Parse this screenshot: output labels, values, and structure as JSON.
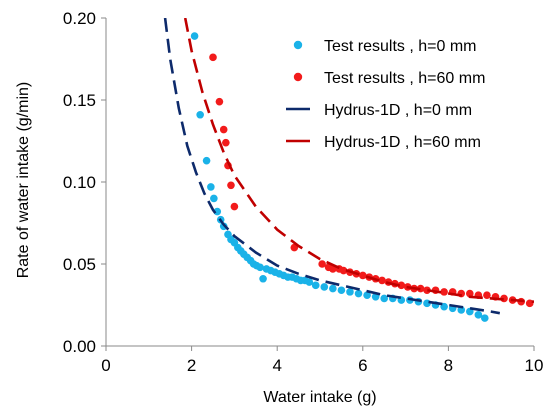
{
  "chart_data": {
    "type": "scatter",
    "title": "",
    "xlabel": "Water intake  (g)",
    "ylabel": "Rate of water intake (g/min)",
    "xlim": [
      0,
      10
    ],
    "ylim": [
      0,
      0.2
    ],
    "x_ticks": [
      "0",
      "2",
      "4",
      "6",
      "8",
      "10"
    ],
    "y_ticks": [
      "0.00",
      "0.05",
      "0.10",
      "0.15",
      "0.20"
    ],
    "grid": false,
    "legend_position": "top-right",
    "series": [
      {
        "name": "Test results , h=0 mm",
        "kind": "points",
        "color": "#1ab2e8",
        "points": [
          [
            2.07,
            0.189
          ],
          [
            2.2,
            0.141
          ],
          [
            2.35,
            0.113
          ],
          [
            2.45,
            0.097
          ],
          [
            2.52,
            0.09
          ],
          [
            2.6,
            0.082
          ],
          [
            2.68,
            0.077
          ],
          [
            2.75,
            0.073
          ],
          [
            2.85,
            0.068
          ],
          [
            2.92,
            0.065
          ],
          [
            3.0,
            0.063
          ],
          [
            3.08,
            0.06
          ],
          [
            3.15,
            0.058
          ],
          [
            3.22,
            0.056
          ],
          [
            3.3,
            0.054
          ],
          [
            3.38,
            0.052
          ],
          [
            3.45,
            0.05
          ],
          [
            3.52,
            0.049
          ],
          [
            3.6,
            0.048
          ],
          [
            3.67,
            0.041
          ],
          [
            3.75,
            0.047
          ],
          [
            3.85,
            0.046
          ],
          [
            3.95,
            0.045
          ],
          [
            4.05,
            0.044
          ],
          [
            4.15,
            0.043
          ],
          [
            4.25,
            0.042
          ],
          [
            4.35,
            0.042
          ],
          [
            4.45,
            0.041
          ],
          [
            4.55,
            0.04
          ],
          [
            4.65,
            0.04
          ],
          [
            4.75,
            0.039
          ],
          [
            4.9,
            0.037
          ],
          [
            5.1,
            0.036
          ],
          [
            5.3,
            0.035
          ],
          [
            5.5,
            0.034
          ],
          [
            5.7,
            0.033
          ],
          [
            5.9,
            0.032
          ],
          [
            6.1,
            0.031
          ],
          [
            6.3,
            0.03
          ],
          [
            6.5,
            0.029
          ],
          [
            6.7,
            0.029
          ],
          [
            6.9,
            0.028
          ],
          [
            7.1,
            0.028
          ],
          [
            7.3,
            0.027
          ],
          [
            7.5,
            0.026
          ],
          [
            7.7,
            0.025
          ],
          [
            7.9,
            0.024
          ],
          [
            8.1,
            0.023
          ],
          [
            8.3,
            0.022
          ],
          [
            8.5,
            0.021
          ],
          [
            8.7,
            0.019
          ],
          [
            8.85,
            0.017
          ]
        ]
      },
      {
        "name": "Test results , h=60 mm",
        "kind": "points",
        "color": "#f21b1b",
        "points": [
          [
            2.5,
            0.176
          ],
          [
            2.65,
            0.149
          ],
          [
            2.75,
            0.132
          ],
          [
            2.8,
            0.124
          ],
          [
            2.85,
            0.11
          ],
          [
            2.92,
            0.098
          ],
          [
            3.0,
            0.085
          ],
          [
            4.4,
            0.06
          ],
          [
            5.05,
            0.05
          ],
          [
            5.2,
            0.048
          ],
          [
            5.3,
            0.047
          ],
          [
            5.45,
            0.047
          ],
          [
            5.55,
            0.046
          ],
          [
            5.7,
            0.045
          ],
          [
            5.85,
            0.044
          ],
          [
            6.0,
            0.043
          ],
          [
            6.15,
            0.042
          ],
          [
            6.3,
            0.041
          ],
          [
            6.45,
            0.04
          ],
          [
            6.6,
            0.039
          ],
          [
            6.75,
            0.038
          ],
          [
            6.9,
            0.037
          ],
          [
            7.05,
            0.036
          ],
          [
            7.2,
            0.035
          ],
          [
            7.35,
            0.035
          ],
          [
            7.5,
            0.034
          ],
          [
            7.7,
            0.034
          ],
          [
            7.9,
            0.033
          ],
          [
            8.1,
            0.033
          ],
          [
            8.3,
            0.032
          ],
          [
            8.5,
            0.032
          ],
          [
            8.7,
            0.031
          ],
          [
            8.9,
            0.031
          ],
          [
            9.1,
            0.03
          ],
          [
            9.3,
            0.029
          ],
          [
            9.5,
            0.028
          ],
          [
            9.7,
            0.027
          ],
          [
            9.9,
            0.026
          ]
        ]
      },
      {
        "name": "Hydrus-1D , h=0 mm",
        "kind": "dashed-line",
        "color": "#0d2a6b",
        "points": [
          [
            1.38,
            0.2
          ],
          [
            1.5,
            0.175
          ],
          [
            1.7,
            0.145
          ],
          [
            1.9,
            0.122
          ],
          [
            2.1,
            0.106
          ],
          [
            2.3,
            0.093
          ],
          [
            2.5,
            0.083
          ],
          [
            2.75,
            0.074
          ],
          [
            3.0,
            0.067
          ],
          [
            3.5,
            0.057
          ],
          [
            4.0,
            0.049
          ],
          [
            4.5,
            0.044
          ],
          [
            5.0,
            0.04
          ],
          [
            5.5,
            0.037
          ],
          [
            6.0,
            0.034
          ],
          [
            6.5,
            0.031
          ],
          [
            7.0,
            0.029
          ],
          [
            7.5,
            0.027
          ],
          [
            8.0,
            0.025
          ],
          [
            8.5,
            0.023
          ],
          [
            9.0,
            0.021
          ],
          [
            9.2,
            0.02
          ]
        ]
      },
      {
        "name": "Hydrus-1D , h=60 mm",
        "kind": "dashed-line",
        "color": "#c00000",
        "points": [
          [
            1.85,
            0.2
          ],
          [
            2.0,
            0.18
          ],
          [
            2.25,
            0.155
          ],
          [
            2.5,
            0.135
          ],
          [
            2.75,
            0.118
          ],
          [
            3.0,
            0.104
          ],
          [
            3.5,
            0.085
          ],
          [
            4.0,
            0.071
          ],
          [
            4.5,
            0.061
          ],
          [
            5.0,
            0.053
          ],
          [
            5.5,
            0.047
          ],
          [
            6.0,
            0.043
          ],
          [
            6.5,
            0.039
          ],
          [
            7.0,
            0.036
          ],
          [
            7.5,
            0.034
          ],
          [
            8.0,
            0.032
          ],
          [
            8.5,
            0.03
          ],
          [
            9.0,
            0.029
          ],
          [
            9.5,
            0.028
          ],
          [
            10.0,
            0.027
          ]
        ]
      }
    ]
  }
}
